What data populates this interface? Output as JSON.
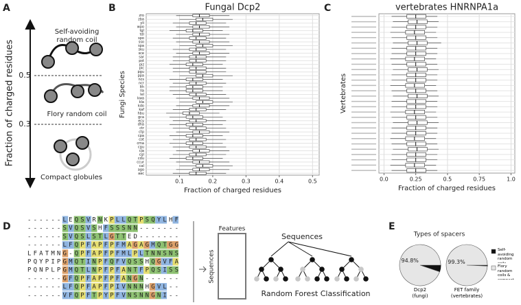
{
  "panel_a": {
    "label": "A",
    "axis_label": "Fraction of charged residues",
    "thresholds": [
      0.5,
      0.3
    ],
    "states": [
      "Self-avoiding",
      "random coil",
      "Flory random coil",
      "Compact globules"
    ]
  },
  "chart_data": [
    {
      "type": "box",
      "panel_label": "B",
      "title": "Fungal Dcp2",
      "xlabel": "Fraction of charged residues",
      "ylabel": "Fungi Species",
      "categories": [
        "zro",
        "zba",
        "yli",
        "wpo",
        "tgl",
        "tdl",
        "spo",
        "sso",
        "spa",
        "sku",
        "sce",
        "sar",
        "pst",
        "piz",
        "pic",
        "pgu",
        "ppa",
        "ncs",
        "ncr",
        "lth",
        "lla",
        "lel",
        "kwa",
        "kla",
        "kdo",
        "kaf",
        "hbu",
        "gca",
        "ecy",
        "dha",
        "ctr",
        "ctp",
        "cpa",
        "cot",
        "cma",
        "cgu",
        "cja",
        "cgl",
        "cdu",
        "ccur",
        "cal",
        "ago",
        "aac"
      ],
      "whisker_low": [
        0.09,
        0.1,
        0.08,
        0.09,
        0.07,
        0.09,
        0.08,
        0.09,
        0.1,
        0.08,
        0.09,
        0.08,
        0.08,
        0.07,
        0.08,
        0.08,
        0.1,
        0.07,
        0.08,
        0.07,
        0.07,
        0.08,
        0.09,
        0.1,
        0.09,
        0.08,
        0.06,
        0.07,
        0.08,
        0.07,
        0.08,
        0.09,
        0.07,
        0.08,
        0.07,
        0.08,
        0.09,
        0.08,
        0.07,
        0.09,
        0.1,
        0.09,
        0.08
      ],
      "q1": [
        0.14,
        0.15,
        0.13,
        0.14,
        0.12,
        0.14,
        0.13,
        0.14,
        0.15,
        0.13,
        0.14,
        0.13,
        0.13,
        0.12,
        0.13,
        0.13,
        0.15,
        0.12,
        0.13,
        0.12,
        0.12,
        0.13,
        0.14,
        0.15,
        0.14,
        0.13,
        0.11,
        0.12,
        0.13,
        0.12,
        0.13,
        0.14,
        0.12,
        0.13,
        0.12,
        0.13,
        0.14,
        0.13,
        0.12,
        0.14,
        0.15,
        0.14,
        0.13
      ],
      "median": [
        0.16,
        0.17,
        0.15,
        0.16,
        0.14,
        0.16,
        0.15,
        0.16,
        0.17,
        0.15,
        0.16,
        0.15,
        0.15,
        0.14,
        0.15,
        0.15,
        0.17,
        0.14,
        0.15,
        0.14,
        0.14,
        0.15,
        0.16,
        0.17,
        0.16,
        0.15,
        0.13,
        0.14,
        0.15,
        0.14,
        0.15,
        0.16,
        0.14,
        0.15,
        0.14,
        0.15,
        0.16,
        0.15,
        0.14,
        0.16,
        0.17,
        0.16,
        0.15
      ],
      "q3": [
        0.19,
        0.2,
        0.18,
        0.19,
        0.17,
        0.19,
        0.18,
        0.19,
        0.2,
        0.18,
        0.19,
        0.18,
        0.18,
        0.17,
        0.18,
        0.18,
        0.2,
        0.17,
        0.18,
        0.17,
        0.17,
        0.18,
        0.19,
        0.2,
        0.19,
        0.18,
        0.16,
        0.17,
        0.18,
        0.17,
        0.18,
        0.19,
        0.17,
        0.18,
        0.17,
        0.18,
        0.19,
        0.18,
        0.17,
        0.19,
        0.2,
        0.19,
        0.18
      ],
      "whisker_high": [
        0.25,
        0.26,
        0.24,
        0.25,
        0.23,
        0.25,
        0.24,
        0.25,
        0.26,
        0.24,
        0.25,
        0.24,
        0.24,
        0.23,
        0.24,
        0.24,
        0.26,
        0.23,
        0.24,
        0.23,
        0.23,
        0.24,
        0.25,
        0.26,
        0.25,
        0.24,
        0.22,
        0.23,
        0.24,
        0.23,
        0.24,
        0.25,
        0.23,
        0.24,
        0.23,
        0.24,
        0.25,
        0.24,
        0.23,
        0.25,
        0.26,
        0.25,
        0.24
      ],
      "xlim": [
        0,
        0.52
      ],
      "xticks": [
        0.1,
        0.2,
        0.3,
        0.4,
        0.5
      ],
      "grid": true
    },
    {
      "type": "box",
      "panel_label": "C",
      "title": "vertebrates HNRNPA1a",
      "xlabel": "Fraction of charged residues",
      "ylabel": "Vertebrates",
      "categories": [
        null,
        null,
        null,
        null,
        null,
        null,
        null,
        null,
        null,
        null,
        null,
        null,
        null,
        null,
        null,
        null,
        null,
        null,
        null,
        null,
        null,
        null,
        null,
        null,
        null,
        null,
        null,
        null,
        null,
        null
      ],
      "whisker_low": [
        0.06,
        0.07,
        0.06,
        0.05,
        0.06,
        0.07,
        0.06,
        0.06,
        0.05,
        0.06,
        0.07,
        0.06,
        0.06,
        0.05,
        0.06,
        0.07,
        0.06,
        0.06,
        0.05,
        0.06,
        0.07,
        0.06,
        0.06,
        0.05,
        0.06,
        0.07,
        0.06,
        0.06,
        0.05,
        0.06
      ],
      "q1": [
        0.18,
        0.19,
        0.18,
        0.17,
        0.18,
        0.19,
        0.18,
        0.18,
        0.17,
        0.18,
        0.19,
        0.18,
        0.18,
        0.17,
        0.18,
        0.19,
        0.18,
        0.18,
        0.17,
        0.18,
        0.19,
        0.18,
        0.18,
        0.17,
        0.18,
        0.19,
        0.18,
        0.18,
        0.17,
        0.18
      ],
      "median": [
        0.25,
        0.26,
        0.25,
        0.24,
        0.25,
        0.26,
        0.25,
        0.25,
        0.24,
        0.25,
        0.26,
        0.25,
        0.25,
        0.24,
        0.25,
        0.26,
        0.25,
        0.25,
        0.24,
        0.25,
        0.26,
        0.25,
        0.25,
        0.24,
        0.25,
        0.26,
        0.25,
        0.25,
        0.24,
        0.25
      ],
      "q3": [
        0.33,
        0.34,
        0.33,
        0.32,
        0.33,
        0.34,
        0.33,
        0.33,
        0.32,
        0.33,
        0.34,
        0.33,
        0.33,
        0.32,
        0.33,
        0.34,
        0.33,
        0.33,
        0.32,
        0.33,
        0.34,
        0.33,
        0.33,
        0.32,
        0.33,
        0.34,
        0.33,
        0.33,
        0.32,
        0.33
      ],
      "whisker_high": [
        0.42,
        0.43,
        0.42,
        0.41,
        0.42,
        0.45,
        0.42,
        0.42,
        0.41,
        0.42,
        0.43,
        0.42,
        0.42,
        0.41,
        0.42,
        0.43,
        0.42,
        0.42,
        0.41,
        0.42,
        0.43,
        0.42,
        0.42,
        0.41,
        0.42,
        0.43,
        0.42,
        0.42,
        0.41,
        0.42
      ],
      "xlim": [
        -0.04,
        1.03
      ],
      "xticks": [
        {
          "value": 0,
          "label": "0.0"
        },
        0.25,
        0.5,
        0.75,
        {
          "value": 1,
          "label": "1.0"
        }
      ],
      "grid": true
    },
    {
      "type": "pie",
      "panel_label": "E",
      "title": "Types of spacers",
      "categories": [
        "Self-avoiding random coils",
        "Flory random coils & compact globules"
      ],
      "colors": [
        "#111111",
        "#e6e6e6"
      ],
      "series": [
        {
          "name": "Dcp2 (fungi)",
          "values": [
            5.2,
            94.8
          ],
          "value_labels": [
            "5.2%",
            "94.8%"
          ]
        },
        {
          "name": "FET family (vertebrates)",
          "values": [
            0.7,
            99.3
          ],
          "value_labels": [
            "0.7%",
            "99.3%"
          ]
        }
      ]
    }
  ],
  "panel_d": {
    "label": "D",
    "alignment": [
      "------LEQSVRNKPLLQTPSQYLHF",
      "------SVQSVSHFSSSNN-------",
      "------SVQSLSTLGTTED-------",
      "------LFQPFAPFPFMAGAGMQTGG",
      "LFATMNG-QPFAPFPFMLPLTNNSNS",
      "PQYPIPGMQTINPFQFVQSSHQGVFA",
      "PQNPLPGMQTLNPFPFANTFPQSISS",
      "------GFQPFAPFPFANGN------",
      "------LFQPFAPFPIVNNNHGVL--",
      "------VFQPFTPYPFVNSNNGNI--"
    ],
    "features": "Features",
    "sequences_axis": "Sequences",
    "sequences_title": "Sequences",
    "classifier": "Random Forest Classification"
  }
}
